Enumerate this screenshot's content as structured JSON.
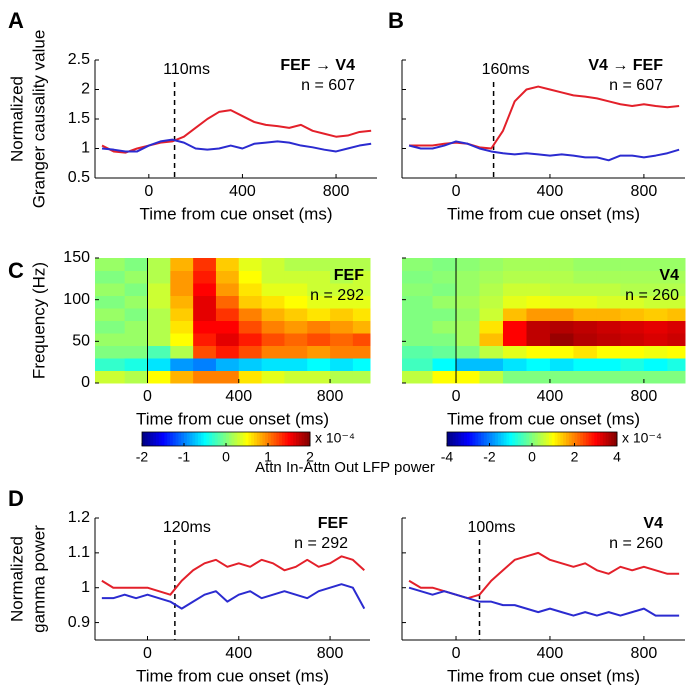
{
  "chart_data": [
    {
      "type": "line",
      "panel": "A",
      "ylabel": [
        "Normalized",
        "Granger causality value"
      ],
      "xlabel": "Time from cue onset (ms)",
      "title": "FEF → V4",
      "subtitle": "n = 607",
      "event_x": 110,
      "event_label": "110ms",
      "xlim": [
        -230,
        975
      ],
      "xticks": [
        0,
        400,
        800
      ],
      "ylim": [
        0.5,
        2.5
      ],
      "yticks": [
        0.5,
        1,
        1.5,
        2,
        2.5
      ],
      "ytick_labels": true,
      "x": [
        -200,
        -150,
        -100,
        -50,
        0,
        50,
        100,
        150,
        200,
        250,
        300,
        350,
        400,
        450,
        500,
        550,
        600,
        650,
        700,
        750,
        800,
        850,
        900,
        950
      ],
      "series": [
        {
          "color": "#e3202a",
          "values": [
            1.05,
            0.95,
            0.93,
            1.0,
            1.05,
            1.1,
            1.12,
            1.2,
            1.35,
            1.5,
            1.62,
            1.65,
            1.55,
            1.45,
            1.4,
            1.38,
            1.35,
            1.4,
            1.3,
            1.25,
            1.2,
            1.22,
            1.28,
            1.3
          ]
        },
        {
          "color": "#2b2bd0",
          "values": [
            1.0,
            0.98,
            0.95,
            0.95,
            1.05,
            1.12,
            1.15,
            1.1,
            1.0,
            0.98,
            1.0,
            1.05,
            1.0,
            1.08,
            1.1,
            1.12,
            1.1,
            1.05,
            1.02,
            0.98,
            0.95,
            1.0,
            1.05,
            1.08
          ]
        }
      ]
    },
    {
      "type": "line",
      "panel": "B",
      "xlabel": "Time from cue onset (ms)",
      "title": "V4 → FEF",
      "subtitle": "n = 607",
      "event_x": 160,
      "event_label": "160ms",
      "xlim": [
        -230,
        975
      ],
      "xticks": [
        0,
        400,
        800
      ],
      "ylim": [
        0.5,
        2.5
      ],
      "yticks": [
        0.5,
        1,
        1.5,
        2,
        2.5
      ],
      "ytick_labels": false,
      "x": [
        -200,
        -150,
        -100,
        -50,
        0,
        50,
        100,
        150,
        200,
        250,
        300,
        350,
        400,
        450,
        500,
        550,
        600,
        650,
        700,
        750,
        800,
        850,
        900,
        950
      ],
      "series": [
        {
          "color": "#e3202a",
          "values": [
            1.05,
            1.05,
            1.05,
            1.08,
            1.1,
            1.08,
            1.02,
            1.0,
            1.3,
            1.8,
            2.0,
            2.05,
            2.0,
            1.95,
            1.9,
            1.88,
            1.85,
            1.8,
            1.75,
            1.72,
            1.75,
            1.72,
            1.7,
            1.72
          ]
        },
        {
          "color": "#2b2bd0",
          "values": [
            1.05,
            1.0,
            1.0,
            1.05,
            1.12,
            1.08,
            1.0,
            0.95,
            0.92,
            0.9,
            0.92,
            0.9,
            0.88,
            0.9,
            0.88,
            0.85,
            0.85,
            0.8,
            0.88,
            0.88,
            0.85,
            0.88,
            0.92,
            0.98
          ]
        }
      ]
    },
    {
      "type": "heatmap",
      "panel": "C",
      "ylabel": [
        "Frequency (Hz)"
      ],
      "xlabel": "Time from cue onset (ms)",
      "title": "FEF",
      "subtitle": "n = 292",
      "event_x": 0,
      "xlim": [
        -230,
        975
      ],
      "xticks": [
        0,
        400,
        800
      ],
      "ylim": [
        0,
        150
      ],
      "yticks": [
        0,
        50,
        100,
        150
      ],
      "ytick_labels": true,
      "xbins": [
        -230,
        -100,
        0,
        100,
        200,
        300,
        400,
        500,
        600,
        700,
        800,
        900,
        975
      ],
      "ybins": [
        0,
        15,
        30,
        45,
        60,
        75,
        90,
        105,
        120,
        135,
        150
      ],
      "zlim": [
        -2,
        2
      ],
      "colorbar_ticks": [
        -2,
        -1,
        0,
        1,
        2
      ],
      "colorbar_unit": "x 10⁻⁴",
      "colorbar_label": "Attn In-Attn Out LFP power",
      "z": [
        [
          0.3,
          0.2,
          0.5,
          0.8,
          1.0,
          1.0,
          0.6,
          0.4,
          0.3,
          0.3,
          0.2,
          0.2
        ],
        [
          -0.3,
          -0.4,
          -0.6,
          -0.9,
          -1.0,
          -0.8,
          -0.7,
          -0.6,
          -0.6,
          -0.5,
          -0.6,
          -0.5
        ],
        [
          0,
          0,
          -0.2,
          0.2,
          1.2,
          1.4,
          1.2,
          1.0,
          1.0,
          0.9,
          1.0,
          1.0
        ],
        [
          0.1,
          0.1,
          0.2,
          0.5,
          1.4,
          1.6,
          1.4,
          1.2,
          1.1,
          1.2,
          1.1,
          1.2
        ],
        [
          0,
          0.1,
          0.2,
          0.6,
          1.5,
          1.5,
          1.2,
          1.0,
          0.9,
          1.0,
          0.9,
          0.8
        ],
        [
          0.1,
          0,
          0.2,
          0.7,
          1.6,
          1.3,
          1.0,
          0.8,
          0.7,
          0.6,
          0.7,
          0.6
        ],
        [
          0,
          0.1,
          0.3,
          0.8,
          1.6,
          1.1,
          0.7,
          0.6,
          0.5,
          0.4,
          0.4,
          0.4
        ],
        [
          0.1,
          0,
          0.3,
          0.9,
          1.5,
          0.9,
          0.6,
          0.4,
          0.4,
          0.3,
          0.3,
          0.3
        ],
        [
          0,
          0.1,
          0.2,
          0.9,
          1.4,
          0.8,
          0.5,
          0.3,
          0.3,
          0.3,
          0.2,
          0.3
        ],
        [
          0.1,
          0,
          0.2,
          0.8,
          1.3,
          0.7,
          0.4,
          0.3,
          0.2,
          0.2,
          0.2,
          0.2
        ]
      ]
    },
    {
      "type": "heatmap",
      "xlabel": "Time from cue onset (ms)",
      "title": "V4",
      "subtitle": "n = 260",
      "event_x": 0,
      "xlim": [
        -230,
        975
      ],
      "xticks": [
        0,
        400,
        800
      ],
      "ylim": [
        0,
        150
      ],
      "yticks": [
        0,
        50,
        100,
        150
      ],
      "ytick_labels": false,
      "xbins": [
        -230,
        -100,
        0,
        100,
        200,
        300,
        400,
        500,
        600,
        700,
        800,
        900,
        975
      ],
      "ybins": [
        0,
        15,
        30,
        45,
        60,
        75,
        90,
        105,
        120,
        135,
        150
      ],
      "zlim": [
        -4,
        4
      ],
      "colorbar_ticks": [
        -4,
        -2,
        0,
        2,
        4
      ],
      "colorbar_unit": "x 10⁻⁴",
      "z": [
        [
          0.5,
          1.0,
          1.0,
          0.5,
          0,
          0,
          0,
          0,
          0,
          0,
          0,
          0
        ],
        [
          -0.5,
          -1.0,
          -1.5,
          -1.5,
          -1.2,
          -1.0,
          -1.2,
          -1.0,
          -1.0,
          -0.8,
          -1.0,
          -0.8
        ],
        [
          -0.3,
          -0.2,
          0,
          0.5,
          0.8,
          1.0,
          1.0,
          1.2,
          1.0,
          1.0,
          0.9,
          1.0
        ],
        [
          0,
          0,
          0.3,
          1.5,
          3.0,
          3.5,
          3.8,
          3.6,
          3.5,
          3.4,
          3.3,
          3.4
        ],
        [
          0,
          0.2,
          0.3,
          1.2,
          3.0,
          3.5,
          3.6,
          3.5,
          3.4,
          3.3,
          3.2,
          3.3
        ],
        [
          0,
          0,
          0.2,
          0.6,
          1.5,
          1.8,
          1.8,
          1.6,
          1.6,
          1.5,
          1.4,
          1.5
        ],
        [
          0,
          0.2,
          0.3,
          0.5,
          0.8,
          0.9,
          0.8,
          0.8,
          0.7,
          0.7,
          0.6,
          0.6
        ],
        [
          0.1,
          0,
          0.2,
          0.4,
          0.6,
          0.6,
          0.5,
          0.5,
          0.5,
          0.4,
          0.4,
          0.4
        ],
        [
          0,
          0.1,
          0.2,
          0.3,
          0.4,
          0.4,
          0.4,
          0.3,
          0.3,
          0.3,
          0.3,
          0.3
        ],
        [
          0.1,
          0,
          0.1,
          0.2,
          0.3,
          0.3,
          0.3,
          0.2,
          0.2,
          0.2,
          0.2,
          0.2
        ]
      ]
    },
    {
      "type": "line",
      "panel": "D",
      "ylabel": [
        "Normalized",
        "gamma power"
      ],
      "xlabel": "Time from cue onset (ms)",
      "title": "FEF",
      "subtitle": "n = 292",
      "event_x": 120,
      "event_label": "120ms",
      "xlim": [
        -230,
        975
      ],
      "xticks": [
        0,
        400,
        800
      ],
      "ylim": [
        0.85,
        1.2
      ],
      "yticks": [
        0.9,
        1,
        1.1,
        1.2
      ],
      "ytick_labels": true,
      "x": [
        -200,
        -150,
        -100,
        -50,
        0,
        50,
        100,
        150,
        200,
        250,
        300,
        350,
        400,
        450,
        500,
        550,
        600,
        650,
        700,
        750,
        800,
        850,
        900,
        950
      ],
      "series": [
        {
          "color": "#e3202a",
          "values": [
            1.02,
            1.0,
            1.0,
            1.0,
            1.0,
            0.99,
            0.98,
            1.02,
            1.05,
            1.07,
            1.08,
            1.06,
            1.07,
            1.06,
            1.08,
            1.07,
            1.05,
            1.06,
            1.08,
            1.06,
            1.07,
            1.09,
            1.08,
            1.05
          ]
        },
        {
          "color": "#2b2bd0",
          "values": [
            0.97,
            0.97,
            0.98,
            0.97,
            0.98,
            0.97,
            0.96,
            0.94,
            0.96,
            0.98,
            0.99,
            0.96,
            0.98,
            0.99,
            0.97,
            0.98,
            0.99,
            0.98,
            0.97,
            0.99,
            1.0,
            1.01,
            1.0,
            0.94
          ]
        }
      ]
    },
    {
      "type": "line",
      "xlabel": "Time from cue onset (ms)",
      "title": "V4",
      "subtitle": "n = 260",
      "event_x": 100,
      "event_label": "100ms",
      "xlim": [
        -230,
        975
      ],
      "xticks": [
        0,
        400,
        800
      ],
      "ylim": [
        0.85,
        1.2
      ],
      "yticks": [
        0.9,
        1,
        1.1,
        1.2
      ],
      "ytick_labels": false,
      "x": [
        -200,
        -150,
        -100,
        -50,
        0,
        50,
        100,
        150,
        200,
        250,
        300,
        350,
        400,
        450,
        500,
        550,
        600,
        650,
        700,
        750,
        800,
        850,
        900,
        950
      ],
      "series": [
        {
          "color": "#e3202a",
          "values": [
            1.02,
            1.0,
            1.0,
            0.99,
            0.98,
            0.97,
            0.98,
            1.02,
            1.05,
            1.08,
            1.09,
            1.1,
            1.08,
            1.07,
            1.06,
            1.07,
            1.05,
            1.04,
            1.06,
            1.05,
            1.06,
            1.05,
            1.04,
            1.04
          ]
        },
        {
          "color": "#2b2bd0",
          "values": [
            1.0,
            0.99,
            0.98,
            0.99,
            0.98,
            0.97,
            0.96,
            0.96,
            0.95,
            0.95,
            0.94,
            0.93,
            0.94,
            0.93,
            0.92,
            0.93,
            0.92,
            0.93,
            0.92,
            0.93,
            0.94,
            0.92,
            0.92,
            0.92
          ]
        }
      ]
    }
  ]
}
